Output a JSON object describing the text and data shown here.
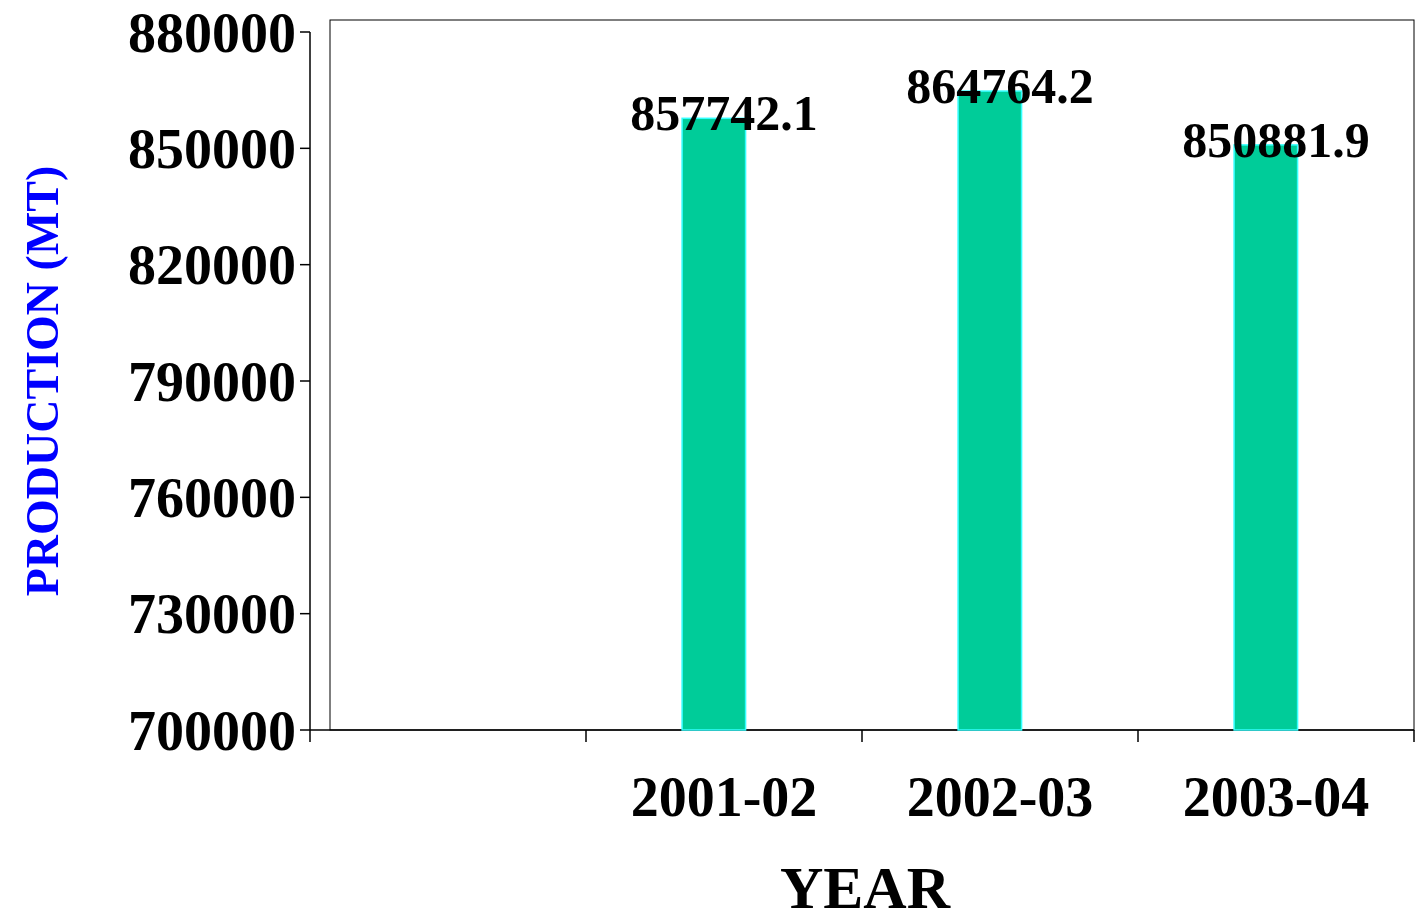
{
  "chart_data": {
    "type": "bar",
    "xlabel": "YEAR",
    "ylabel": "PRODUCTION (MT)",
    "categories": [
      null,
      "2001-02",
      "2002-03",
      "2003-04"
    ],
    "values": [
      null,
      857742.1,
      864764.2,
      850881.9
    ],
    "color": "#00cc99",
    "ylim": [
      700000,
      880000
    ],
    "yticks": [
      700000,
      730000,
      760000,
      790000,
      820000,
      850000,
      880000
    ],
    "data_labels": true,
    "grid": false
  }
}
